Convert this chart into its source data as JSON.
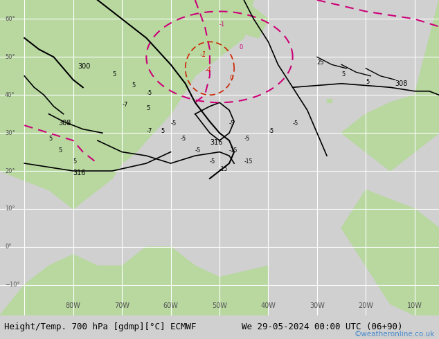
{
  "title_left": "Height/Temp. 700 hPa [gdmp][°C] ECMWF",
  "title_right": "We 29-05-2024 00:00 UTC (06+90)",
  "copyright": "©weatheronline.co.uk",
  "bg_color": "#e8e8e8",
  "land_color": "#b8d8a0",
  "grid_color": "#ffffff",
  "map_bg": "#d8e8f0",
  "bottom_bar_color": "#d0d0d0",
  "title_fontsize": 9,
  "copyright_color": "#4488cc",
  "xlabel_color": "#555555",
  "axis_tick_fontsize": 7,
  "contour_black_color": "#000000",
  "contour_pink_color": "#cc0077",
  "contour_red_color": "#cc2200"
}
